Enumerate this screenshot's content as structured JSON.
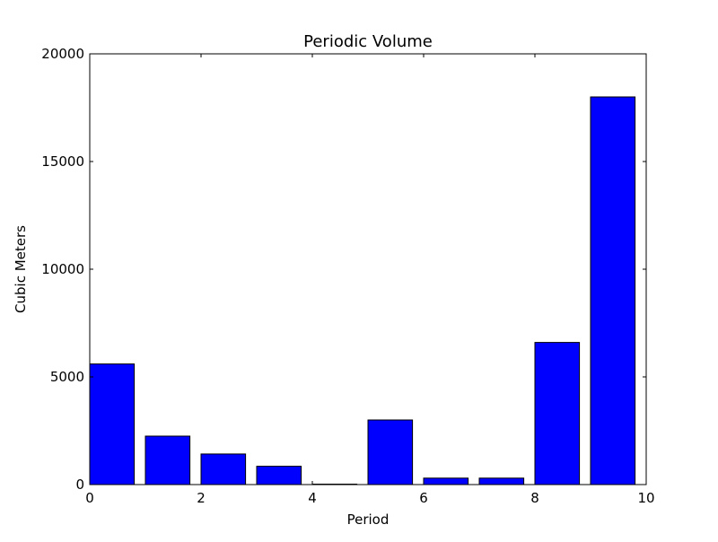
{
  "chart_data": {
    "type": "bar",
    "title": "Periodic Volume",
    "xlabel": "Period",
    "ylabel": "Cubic Meters",
    "x": [
      0,
      1,
      2,
      3,
      4,
      5,
      6,
      7,
      8,
      9
    ],
    "values": [
      5600,
      2250,
      1420,
      850,
      20,
      3000,
      300,
      300,
      6600,
      18000
    ],
    "bar_width": 0.8,
    "xlim": [
      0,
      10
    ],
    "ylim": [
      0,
      20000
    ],
    "xticks": [
      0,
      2,
      4,
      6,
      8,
      10
    ],
    "yticks": [
      0,
      5000,
      10000,
      15000,
      20000
    ],
    "grid": false,
    "colors": {
      "bar_fill": "#0000ff",
      "bar_edge": "#000000",
      "axes": "#000000",
      "background": "#ffffff"
    }
  }
}
